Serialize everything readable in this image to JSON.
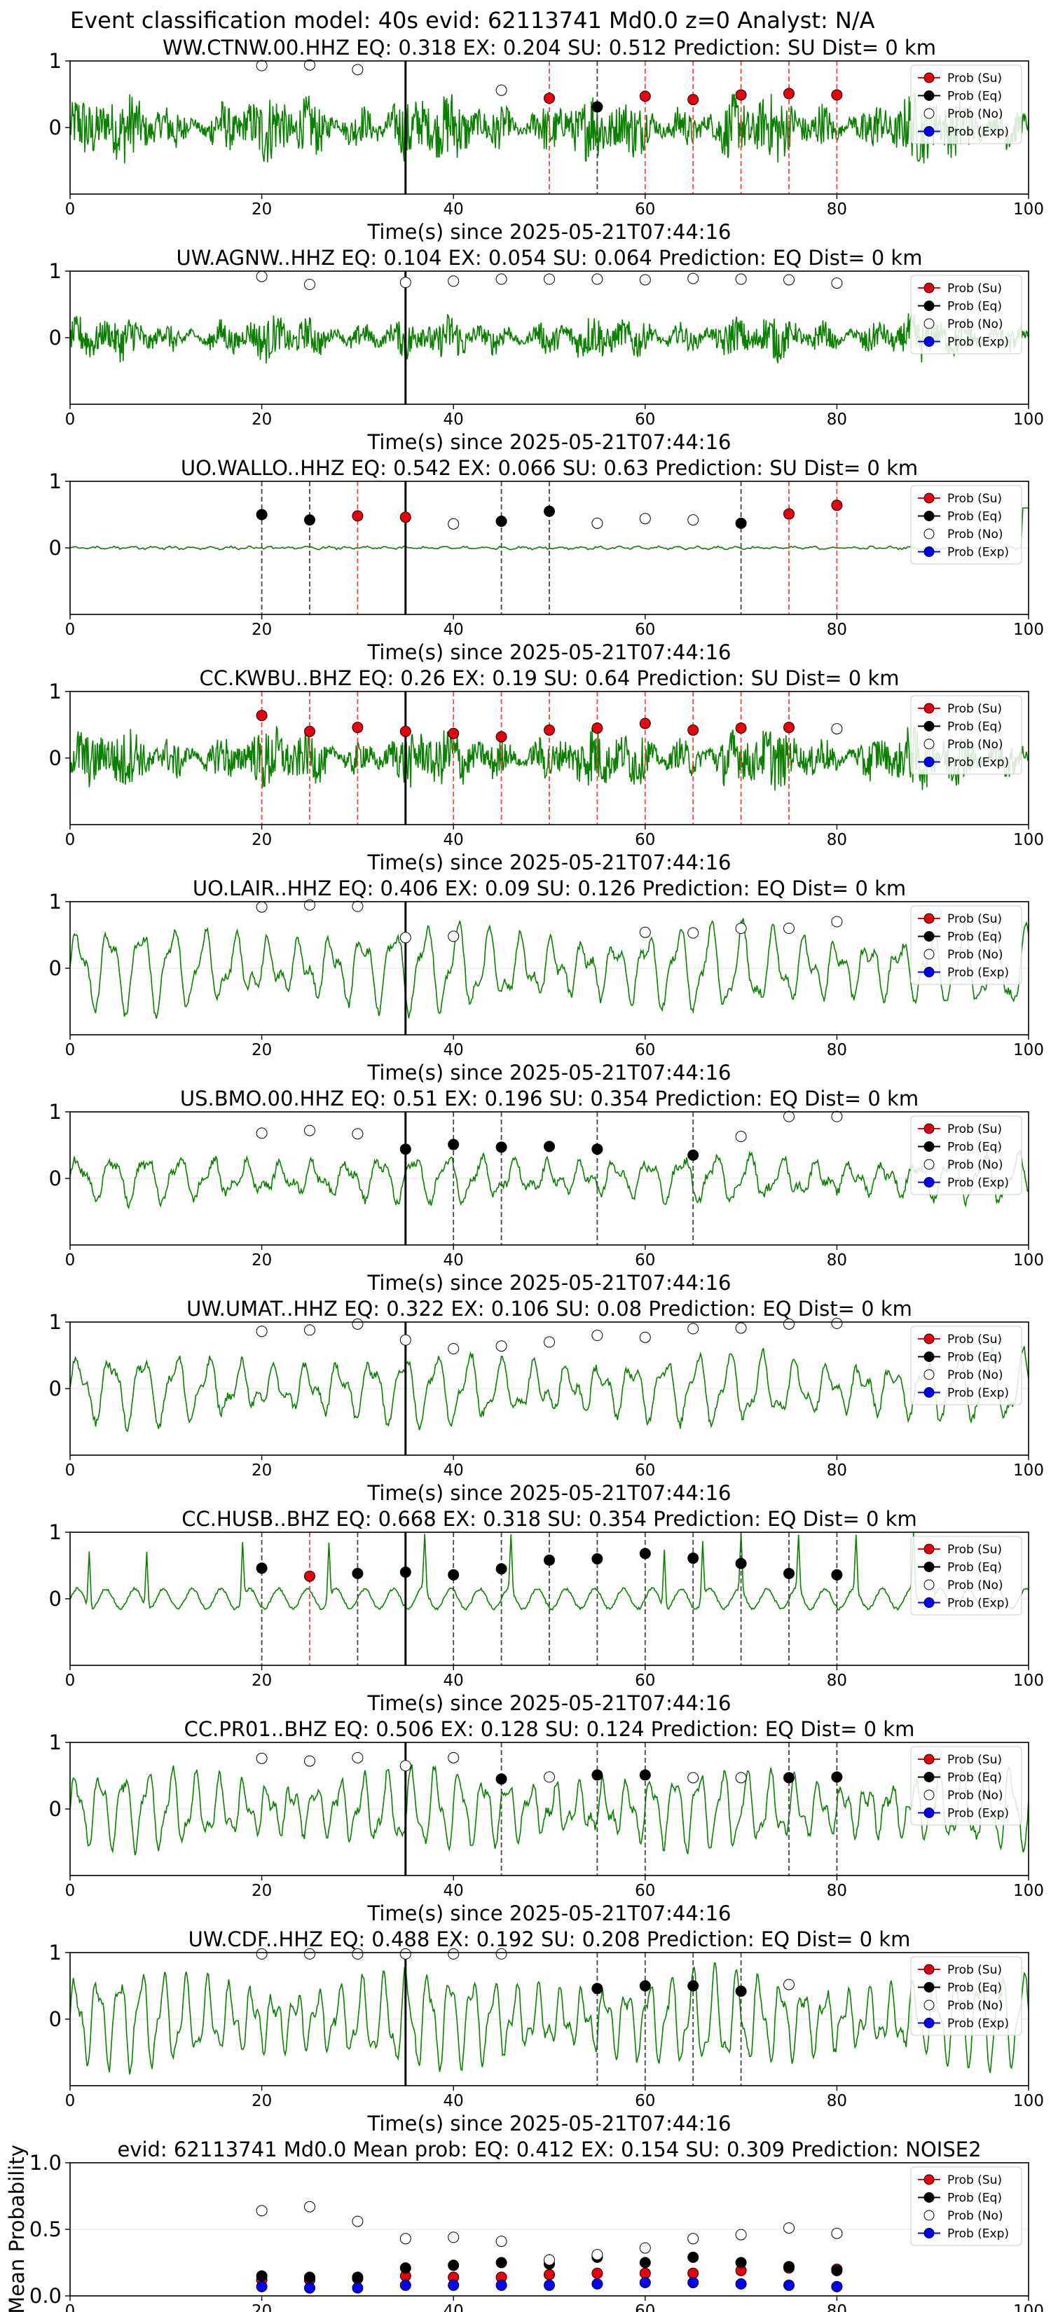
{
  "suptitle": "Event classification model: 40s evid: 62113741 Md0.0 z=0 Analyst: N/A",
  "xlabel": "Time(s) since 2025-05-21T07:44:16",
  "legend": [
    {
      "label": "Prob (Su)",
      "color": "#e8000b"
    },
    {
      "label": "Prob (Eq)",
      "color": "#000000"
    },
    {
      "label": "Prob (No)",
      "color": "#ffffff"
    },
    {
      "label": "Prob (Exp)",
      "color": "#0000ff"
    }
  ],
  "colors": {
    "waveform": "#0a8000",
    "su": "#e8000b",
    "eq": "#000000",
    "noise": "#ffffff",
    "exp": "#0000ff",
    "pick": "#000000"
  },
  "chart_data": [
    {
      "type": "line",
      "title": "WW.CTNW.00.HHZ   EQ: 0.318  EX: 0.204  SU: 0.512   Prediction: SU    Dist= 0 km",
      "xlim": [
        0,
        100
      ],
      "ylim": [
        -1,
        1
      ],
      "xticks": [
        0,
        20,
        40,
        60,
        80,
        100
      ],
      "yticks": [
        0,
        1
      ],
      "pick": 35,
      "waveform": {
        "kind": "noisy",
        "amp": 0.62,
        "period": 1.2
      },
      "points": [
        [
          20,
          0.93,
          "No"
        ],
        [
          25,
          0.94,
          "No"
        ],
        [
          30,
          0.87,
          "No"
        ],
        [
          45,
          0.56,
          "No"
        ],
        [
          50,
          0.44,
          "Su"
        ],
        [
          55,
          0.31,
          "Eq"
        ],
        [
          60,
          0.47,
          "Su"
        ],
        [
          65,
          0.42,
          "Su"
        ],
        [
          70,
          0.49,
          "Su"
        ],
        [
          75,
          0.51,
          "Su"
        ],
        [
          80,
          0.49,
          "Su"
        ]
      ],
      "vlines": [
        [
          50,
          "Su"
        ],
        [
          55,
          "Eq"
        ],
        [
          60,
          "Su"
        ],
        [
          65,
          "Su"
        ],
        [
          70,
          "Su"
        ],
        [
          75,
          "Su"
        ],
        [
          80,
          "Su"
        ]
      ]
    },
    {
      "type": "line",
      "title": "UW.AGNW..HHZ   EQ: 0.104  EX: 0.054  SU: 0.064   Prediction: EQ    Dist= 0 km",
      "xlim": [
        0,
        100
      ],
      "ylim": [
        -1,
        1
      ],
      "xticks": [
        0,
        20,
        40,
        60,
        80,
        100
      ],
      "yticks": [
        0,
        1
      ],
      "pick": 35,
      "waveform": {
        "kind": "noisy",
        "amp": 0.38,
        "period": 1.0
      },
      "points": [
        [
          20,
          0.92,
          "No"
        ],
        [
          25,
          0.8,
          "No"
        ],
        [
          35,
          0.83,
          "No"
        ],
        [
          40,
          0.85,
          "No"
        ],
        [
          45,
          0.88,
          "No"
        ],
        [
          50,
          0.88,
          "No"
        ],
        [
          55,
          0.88,
          "No"
        ],
        [
          60,
          0.87,
          "No"
        ],
        [
          65,
          0.89,
          "No"
        ],
        [
          70,
          0.88,
          "No"
        ],
        [
          75,
          0.87,
          "No"
        ],
        [
          80,
          0.82,
          "No"
        ]
      ],
      "vlines": []
    },
    {
      "type": "line",
      "title": "UO.WALLO..HHZ   EQ: 0.542  EX: 0.066  SU: 0.63   Prediction: SU    Dist= 0 km",
      "xlim": [
        0,
        100
      ],
      "ylim": [
        -1,
        1
      ],
      "xticks": [
        0,
        20,
        40,
        60,
        80,
        100
      ],
      "yticks": [
        0,
        1
      ],
      "pick": 35,
      "waveform": {
        "kind": "flat",
        "amp": 0.03,
        "period": 1.0
      },
      "points": [
        [
          20,
          0.5,
          "Eq"
        ],
        [
          25,
          0.42,
          "Eq"
        ],
        [
          30,
          0.48,
          "Su"
        ],
        [
          35,
          0.46,
          "Su"
        ],
        [
          40,
          0.36,
          "No"
        ],
        [
          45,
          0.4,
          "Eq"
        ],
        [
          50,
          0.55,
          "Eq"
        ],
        [
          55,
          0.37,
          "No"
        ],
        [
          60,
          0.44,
          "No"
        ],
        [
          65,
          0.42,
          "No"
        ],
        [
          70,
          0.37,
          "Eq"
        ],
        [
          75,
          0.51,
          "Su"
        ],
        [
          80,
          0.64,
          "Su"
        ]
      ],
      "vlines": [
        [
          20,
          "Eq"
        ],
        [
          25,
          "Eq"
        ],
        [
          30,
          "Su"
        ],
        [
          45,
          "Eq"
        ],
        [
          50,
          "Eq"
        ],
        [
          70,
          "Eq"
        ],
        [
          75,
          "Su"
        ],
        [
          80,
          "Su"
        ]
      ]
    },
    {
      "type": "line",
      "title": "CC.KWBU..BHZ   EQ: 0.26  EX: 0.19  SU: 0.64   Prediction: SU    Dist= 0 km",
      "xlim": [
        0,
        100
      ],
      "ylim": [
        -1,
        1
      ],
      "xticks": [
        0,
        20,
        40,
        60,
        80,
        100
      ],
      "yticks": [
        0,
        1
      ],
      "pick": 35,
      "waveform": {
        "kind": "noisy",
        "amp": 0.55,
        "period": 0.8
      },
      "points": [
        [
          20,
          0.64,
          "Su"
        ],
        [
          25,
          0.4,
          "Su"
        ],
        [
          30,
          0.46,
          "Su"
        ],
        [
          35,
          0.4,
          "Su"
        ],
        [
          40,
          0.37,
          "Su"
        ],
        [
          45,
          0.32,
          "Su"
        ],
        [
          50,
          0.42,
          "Su"
        ],
        [
          55,
          0.45,
          "Su"
        ],
        [
          60,
          0.52,
          "Su"
        ],
        [
          65,
          0.42,
          "Su"
        ],
        [
          70,
          0.45,
          "Su"
        ],
        [
          75,
          0.46,
          "Su"
        ],
        [
          80,
          0.44,
          "No"
        ]
      ],
      "vlines": [
        [
          20,
          "Su"
        ],
        [
          25,
          "Su"
        ],
        [
          30,
          "Su"
        ],
        [
          40,
          "Su"
        ],
        [
          45,
          "Su"
        ],
        [
          50,
          "Su"
        ],
        [
          55,
          "Su"
        ],
        [
          60,
          "Su"
        ],
        [
          65,
          "Su"
        ],
        [
          70,
          "Su"
        ],
        [
          75,
          "Su"
        ]
      ]
    },
    {
      "type": "line",
      "title": "UO.LAIR..HHZ   EQ: 0.406  EX: 0.09  SU: 0.126   Prediction: EQ    Dist= 0 km",
      "xlim": [
        0,
        100
      ],
      "ylim": [
        -1,
        1
      ],
      "xticks": [
        0,
        20,
        40,
        60,
        80,
        100
      ],
      "yticks": [
        0,
        1
      ],
      "pick": 35,
      "waveform": {
        "kind": "smooth",
        "amp": 0.55,
        "period": 3.3
      },
      "points": [
        [
          20,
          0.92,
          "No"
        ],
        [
          25,
          0.95,
          "No"
        ],
        [
          30,
          0.93,
          "No"
        ],
        [
          35,
          0.46,
          "No"
        ],
        [
          40,
          0.48,
          "No"
        ],
        [
          60,
          0.54,
          "No"
        ],
        [
          65,
          0.53,
          "No"
        ],
        [
          70,
          0.6,
          "No"
        ],
        [
          75,
          0.6,
          "No"
        ],
        [
          80,
          0.7,
          "No"
        ]
      ],
      "vlines": []
    },
    {
      "type": "line",
      "title": "US.BMO.00.HHZ   EQ: 0.51  EX: 0.196  SU: 0.354   Prediction: EQ    Dist= 0 km",
      "xlim": [
        0,
        100
      ],
      "ylim": [
        -1,
        1
      ],
      "xticks": [
        0,
        20,
        40,
        60,
        80,
        100
      ],
      "yticks": [
        0,
        1
      ],
      "pick": 35,
      "waveform": {
        "kind": "smooth",
        "amp": 0.3,
        "period": 3.5
      },
      "points": [
        [
          20,
          0.68,
          "No"
        ],
        [
          25,
          0.72,
          "No"
        ],
        [
          30,
          0.67,
          "No"
        ],
        [
          35,
          0.44,
          "Eq"
        ],
        [
          40,
          0.51,
          "Eq"
        ],
        [
          45,
          0.47,
          "Eq"
        ],
        [
          50,
          0.48,
          "Eq"
        ],
        [
          55,
          0.44,
          "Eq"
        ],
        [
          65,
          0.35,
          "Eq"
        ],
        [
          70,
          0.63,
          "No"
        ],
        [
          75,
          0.93,
          "No"
        ],
        [
          80,
          0.93,
          "No"
        ]
      ],
      "vlines": [
        [
          40,
          "Eq"
        ],
        [
          45,
          "Eq"
        ],
        [
          55,
          "Eq"
        ],
        [
          65,
          "Eq"
        ]
      ]
    },
    {
      "type": "line",
      "title": "UW.UMAT..HHZ   EQ: 0.322  EX: 0.106  SU: 0.08   Prediction: EQ    Dist= 0 km",
      "xlim": [
        0,
        100
      ],
      "ylim": [
        -1,
        1
      ],
      "xticks": [
        0,
        20,
        40,
        60,
        80,
        100
      ],
      "yticks": [
        0,
        1
      ],
      "pick": 35,
      "waveform": {
        "kind": "smooth",
        "amp": 0.45,
        "period": 3.4
      },
      "points": [
        [
          20,
          0.86,
          "No"
        ],
        [
          25,
          0.88,
          "No"
        ],
        [
          30,
          0.97,
          "No"
        ],
        [
          35,
          0.73,
          "No"
        ],
        [
          40,
          0.6,
          "No"
        ],
        [
          45,
          0.64,
          "No"
        ],
        [
          50,
          0.7,
          "No"
        ],
        [
          55,
          0.8,
          "No"
        ],
        [
          60,
          0.77,
          "No"
        ],
        [
          65,
          0.9,
          "No"
        ],
        [
          70,
          0.91,
          "No"
        ],
        [
          75,
          0.97,
          "No"
        ],
        [
          80,
          0.98,
          "No"
        ]
      ],
      "vlines": []
    },
    {
      "type": "line",
      "title": "CC.HUSB..BHZ   EQ: 0.668  EX: 0.318  SU: 0.354   Prediction: EQ    Dist= 0 km",
      "xlim": [
        0,
        100
      ],
      "ylim": [
        -1,
        1
      ],
      "xticks": [
        0,
        20,
        40,
        60,
        80,
        100
      ],
      "yticks": [
        0,
        1
      ],
      "pick": 35,
      "waveform": {
        "kind": "spiky",
        "amp": 0.15,
        "period": 3.0
      },
      "points": [
        [
          20,
          0.46,
          "Eq"
        ],
        [
          25,
          0.34,
          "Su"
        ],
        [
          30,
          0.38,
          "Eq"
        ],
        [
          35,
          0.4,
          "Eq"
        ],
        [
          40,
          0.36,
          "Eq"
        ],
        [
          45,
          0.45,
          "Eq"
        ],
        [
          50,
          0.58,
          "Eq"
        ],
        [
          55,
          0.6,
          "Eq"
        ],
        [
          60,
          0.68,
          "Eq"
        ],
        [
          65,
          0.61,
          "Eq"
        ],
        [
          70,
          0.53,
          "Eq"
        ],
        [
          75,
          0.38,
          "Eq"
        ],
        [
          80,
          0.36,
          "Eq"
        ]
      ],
      "vlines": [
        [
          20,
          "Eq"
        ],
        [
          25,
          "Su"
        ],
        [
          30,
          "Eq"
        ],
        [
          40,
          "Eq"
        ],
        [
          45,
          "Eq"
        ],
        [
          50,
          "Eq"
        ],
        [
          55,
          "Eq"
        ],
        [
          60,
          "Eq"
        ],
        [
          65,
          "Eq"
        ],
        [
          70,
          "Eq"
        ],
        [
          75,
          "Eq"
        ],
        [
          80,
          "Eq"
        ]
      ]
    },
    {
      "type": "line",
      "title": "CC.PR01..BHZ   EQ: 0.506  EX: 0.128  SU: 0.124   Prediction: EQ    Dist= 0 km",
      "xlim": [
        0,
        100
      ],
      "ylim": [
        -1,
        1
      ],
      "xticks": [
        0,
        20,
        40,
        60,
        80,
        100
      ],
      "yticks": [
        0,
        1
      ],
      "pick": 35,
      "waveform": {
        "kind": "smooth",
        "amp": 0.5,
        "period": 2.5
      },
      "points": [
        [
          20,
          0.76,
          "No"
        ],
        [
          25,
          0.72,
          "No"
        ],
        [
          30,
          0.77,
          "No"
        ],
        [
          35,
          0.65,
          "No"
        ],
        [
          40,
          0.77,
          "No"
        ],
        [
          45,
          0.45,
          "Eq"
        ],
        [
          50,
          0.48,
          "No"
        ],
        [
          55,
          0.51,
          "Eq"
        ],
        [
          60,
          0.51,
          "Eq"
        ],
        [
          65,
          0.47,
          "No"
        ],
        [
          70,
          0.47,
          "No"
        ],
        [
          75,
          0.47,
          "Eq"
        ],
        [
          80,
          0.48,
          "Eq"
        ]
      ],
      "vlines": [
        [
          45,
          "Eq"
        ],
        [
          55,
          "Eq"
        ],
        [
          60,
          "Eq"
        ],
        [
          75,
          "Eq"
        ],
        [
          80,
          "Eq"
        ]
      ]
    },
    {
      "type": "line",
      "title": "UW.CDF..HHZ   EQ: 0.488  EX: 0.192  SU: 0.208   Prediction: EQ    Dist= 0 km",
      "xlim": [
        0,
        100
      ],
      "ylim": [
        -1,
        1
      ],
      "xticks": [
        0,
        20,
        40,
        60,
        80,
        100
      ],
      "yticks": [
        0,
        1
      ],
      "pick": 35,
      "waveform": {
        "kind": "smooth",
        "amp": 0.6,
        "period": 2.3
      },
      "points": [
        [
          20,
          0.98,
          "No"
        ],
        [
          25,
          0.98,
          "No"
        ],
        [
          30,
          0.98,
          "No"
        ],
        [
          35,
          0.98,
          "No"
        ],
        [
          40,
          0.98,
          "No"
        ],
        [
          45,
          0.98,
          "No"
        ],
        [
          55,
          0.46,
          "Eq"
        ],
        [
          60,
          0.5,
          "Eq"
        ],
        [
          65,
          0.5,
          "Eq"
        ],
        [
          70,
          0.42,
          "Eq"
        ],
        [
          75,
          0.52,
          "No"
        ]
      ],
      "vlines": [
        [
          55,
          "Eq"
        ],
        [
          60,
          "Eq"
        ],
        [
          65,
          "Eq"
        ],
        [
          70,
          "Eq"
        ]
      ]
    },
    {
      "type": "scatter",
      "title": "evid: 62113741   Md0.0    Mean prob:   EQ: 0.412  EX: 0.154  SU: 0.309   Prediction: NOISE2",
      "xlim": [
        0,
        100
      ],
      "ylim": [
        0,
        1
      ],
      "xticks": [
        0,
        20,
        40,
        60,
        80,
        100
      ],
      "yticks": [
        0.0,
        0.5,
        1.0
      ],
      "ylabel": "Mean Probability",
      "x": [
        20,
        25,
        30,
        35,
        40,
        45,
        50,
        55,
        60,
        65,
        70,
        75,
        80
      ],
      "series": [
        {
          "name": "Prob (Su)",
          "cls": "Su",
          "values": [
            0.12,
            0.12,
            0.13,
            0.15,
            0.14,
            0.14,
            0.16,
            0.17,
            0.17,
            0.17,
            0.19,
            0.21,
            0.2
          ]
        },
        {
          "name": "Prob (Eq)",
          "cls": "Eq",
          "values": [
            0.15,
            0.14,
            0.14,
            0.21,
            0.23,
            0.25,
            0.24,
            0.29,
            0.25,
            0.29,
            0.25,
            0.22,
            0.19
          ]
        },
        {
          "name": "Prob (No)",
          "cls": "No",
          "values": [
            0.64,
            0.67,
            0.56,
            0.43,
            0.44,
            0.41,
            0.27,
            0.31,
            0.36,
            0.43,
            0.46,
            0.51,
            0.47
          ]
        },
        {
          "name": "Prob (Exp)",
          "cls": "Exp",
          "values": [
            0.07,
            0.06,
            0.06,
            0.08,
            0.08,
            0.08,
            0.08,
            0.09,
            0.1,
            0.1,
            0.09,
            0.08,
            0.07
          ]
        }
      ]
    }
  ]
}
